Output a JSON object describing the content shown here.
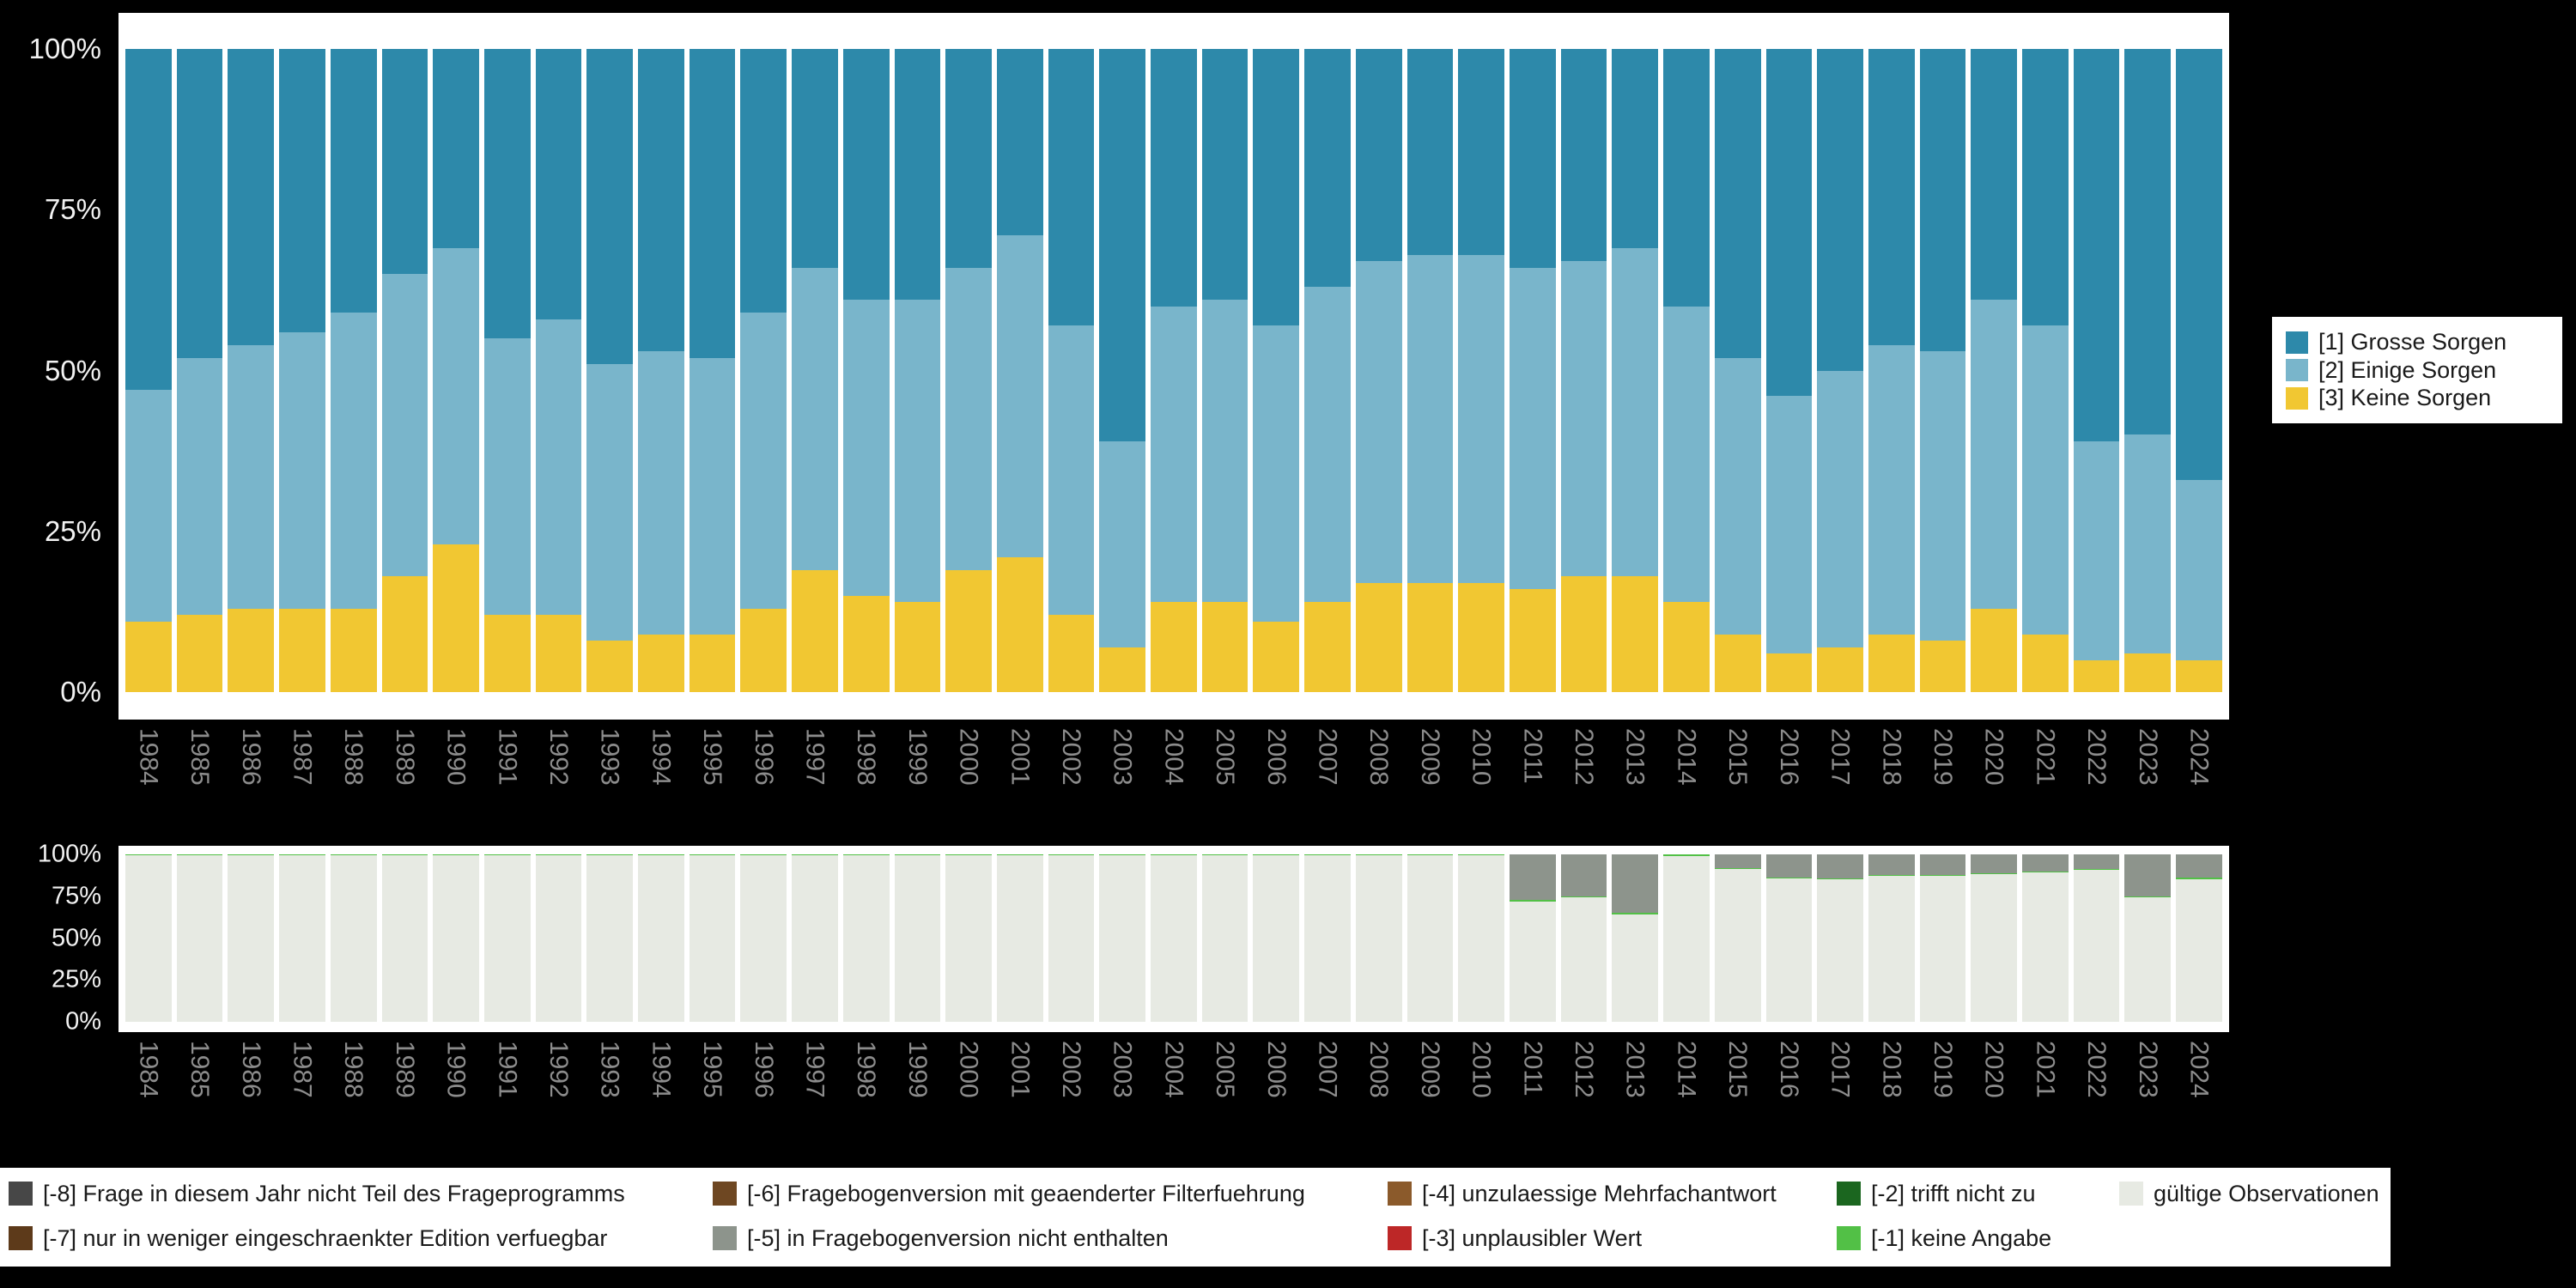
{
  "colors": {
    "background": "#000000",
    "panel": "#ffffff",
    "x_tick_text": "#8c8c8c",
    "y_tick_text": "#f2f2f2",
    "legend_text": "#1a1a1a"
  },
  "chart_data": [
    {
      "id": "main",
      "type": "bar",
      "stacked": true,
      "stack_order": "bottom_to_top",
      "ylim": [
        0,
        100
      ],
      "grid": false,
      "legend_position": "right",
      "yticks": [
        {
          "label": "0%",
          "value": 0
        },
        {
          "label": "25%",
          "value": 25
        },
        {
          "label": "50%",
          "value": 50
        },
        {
          "label": "75%",
          "value": 75
        },
        {
          "label": "100%",
          "value": 100
        }
      ],
      "categories": [
        "1984",
        "1985",
        "1986",
        "1987",
        "1988",
        "1989",
        "1990",
        "1991",
        "1992",
        "1993",
        "1994",
        "1995",
        "1996",
        "1997",
        "1998",
        "1999",
        "2000",
        "2001",
        "2002",
        "2003",
        "2004",
        "2005",
        "2006",
        "2007",
        "2008",
        "2009",
        "2010",
        "2011",
        "2012",
        "2013",
        "2014",
        "2015",
        "2016",
        "2017",
        "2018",
        "2019",
        "2020",
        "2021",
        "2022",
        "2023",
        "2024"
      ],
      "series": [
        {
          "name": "[3] Keine Sorgen",
          "color": "#f1c732",
          "values": [
            11,
            12,
            13,
            13,
            13,
            18,
            23,
            12,
            12,
            8,
            9,
            9,
            13,
            19,
            15,
            14,
            19,
            21,
            12,
            7,
            14,
            14,
            11,
            14,
            17,
            17,
            17,
            16,
            18,
            18,
            14,
            9,
            6,
            7,
            9,
            8,
            13,
            9,
            5,
            6,
            5
          ]
        },
        {
          "name": "[2] Einige Sorgen",
          "color": "#79b5cb",
          "values": [
            36,
            40,
            41,
            43,
            46,
            47,
            46,
            43,
            46,
            43,
            44,
            43,
            46,
            47,
            46,
            47,
            47,
            50,
            45,
            32,
            46,
            47,
            46,
            49,
            50,
            51,
            51,
            50,
            49,
            51,
            46,
            43,
            40,
            43,
            45,
            45,
            48,
            48,
            34,
            34,
            28
          ]
        },
        {
          "name": "[1] Grosse Sorgen",
          "color": "#2d89aa",
          "values": [
            53,
            48,
            46,
            44,
            41,
            35,
            31,
            45,
            42,
            49,
            47,
            48,
            41,
            34,
            39,
            39,
            34,
            29,
            43,
            61,
            40,
            39,
            43,
            37,
            33,
            32,
            32,
            34,
            33,
            31,
            40,
            48,
            54,
            50,
            46,
            47,
            39,
            43,
            61,
            60,
            67
          ]
        }
      ]
    },
    {
      "id": "missings",
      "type": "bar",
      "stacked": true,
      "stack_order": "bottom_to_top",
      "ylim": [
        0,
        100
      ],
      "grid": false,
      "yticks": [
        {
          "label": "0%",
          "value": 0
        },
        {
          "label": "25%",
          "value": 25
        },
        {
          "label": "50%",
          "value": 50
        },
        {
          "label": "75%",
          "value": 75
        },
        {
          "label": "100%",
          "value": 100
        }
      ],
      "categories": [
        "1984",
        "1985",
        "1986",
        "1987",
        "1988",
        "1989",
        "1990",
        "1991",
        "1992",
        "1993",
        "1994",
        "1995",
        "1996",
        "1997",
        "1998",
        "1999",
        "2000",
        "2001",
        "2002",
        "2003",
        "2004",
        "2005",
        "2006",
        "2007",
        "2008",
        "2009",
        "2010",
        "2011",
        "2012",
        "2013",
        "2014",
        "2015",
        "2016",
        "2017",
        "2018",
        "2019",
        "2020",
        "2021",
        "2022",
        "2023",
        "2024"
      ],
      "series": [
        {
          "name": "gültige Observationen",
          "color": "#e7eae3",
          "values": [
            99.4,
            99.4,
            99.4,
            99.4,
            99.4,
            99.4,
            99.4,
            99.4,
            99.4,
            99.4,
            99.4,
            99.4,
            99.4,
            99.4,
            99.4,
            99.4,
            99.4,
            99.4,
            99.4,
            99.4,
            99.4,
            99.4,
            99.4,
            99.4,
            99.4,
            99.4,
            99.4,
            72,
            74.5,
            64,
            99,
            91.5,
            85.5,
            85,
            87,
            87,
            88,
            89,
            91,
            74.5,
            85
          ]
        },
        {
          "name": "[-1] keine Angabe",
          "color": "#52c046",
          "values": [
            0.6,
            0.6,
            0.6,
            0.6,
            0.6,
            0.6,
            0.6,
            0.6,
            0.6,
            0.6,
            0.6,
            0.6,
            0.6,
            0.6,
            0.6,
            0.6,
            0.6,
            0.6,
            0.6,
            0.6,
            0.6,
            0.6,
            0.6,
            0.6,
            0.6,
            0.6,
            0.6,
            1,
            0.5,
            1,
            1,
            0.5,
            0.5,
            0.5,
            0.5,
            0.5,
            0.5,
            0.5,
            0.5,
            0.5,
            1
          ]
        },
        {
          "name": "[-5] in Fragebogenversion nicht enthalten",
          "color": "#8d948c",
          "values": [
            0,
            0,
            0,
            0,
            0,
            0,
            0,
            0,
            0,
            0,
            0,
            0,
            0,
            0,
            0,
            0,
            0,
            0,
            0,
            0,
            0,
            0,
            0,
            0,
            0,
            0,
            0,
            27,
            25,
            35,
            0,
            8,
            14,
            14.5,
            12.5,
            12.5,
            11.5,
            10.5,
            8.5,
            25,
            14
          ]
        }
      ]
    }
  ],
  "legend_main": {
    "items": [
      {
        "label": "[1] Grosse Sorgen",
        "color": "#2d89aa"
      },
      {
        "label": "[2] Einige Sorgen",
        "color": "#79b5cb"
      },
      {
        "label": "[3] Keine Sorgen",
        "color": "#f1c732"
      }
    ]
  },
  "legend_missing": {
    "rows": [
      [
        {
          "label": "[-8] Frage in diesem Jahr nicht Teil des Frageprogramms",
          "color": "#474747"
        },
        {
          "label": "[-6] Fragebogenversion mit geaenderter Filterfuehrung",
          "color": "#6e4722"
        },
        {
          "label": "[-4] unzulaessige Mehrfachantwort",
          "color": "#8b5a2b"
        },
        {
          "label": "[-2] trifft nicht zu",
          "color": "#1b661f"
        },
        {
          "label": "gültige Observationen",
          "color": "#e7eae3"
        }
      ],
      [
        {
          "label": "[-7] nur in weniger eingeschraenkter Edition verfuegbar",
          "color": "#5d3a1a"
        },
        {
          "label": "[-5] in Fragebogenversion nicht enthalten",
          "color": "#8d948c"
        },
        {
          "label": "[-3] unplausibler Wert",
          "color": "#bd2727"
        },
        {
          "label": "[-1] keine Angabe",
          "color": "#52c046"
        }
      ]
    ]
  }
}
